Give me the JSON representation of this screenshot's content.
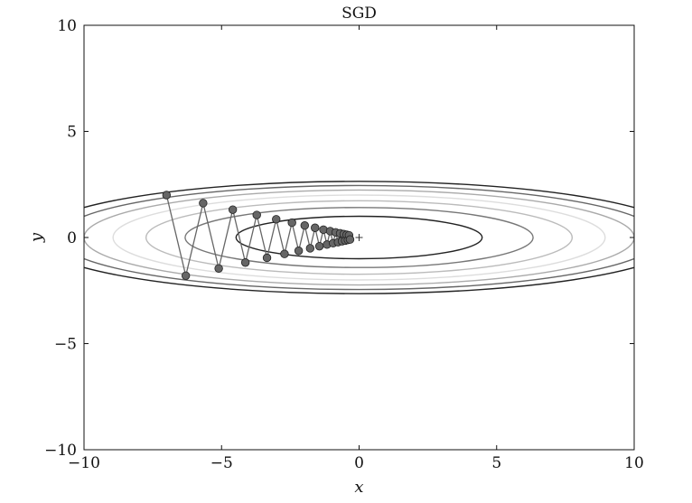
{
  "chart_data": {
    "type": "line",
    "title": "SGD",
    "xlabel": "x",
    "ylabel": "y",
    "xlim": [
      -10,
      10
    ],
    "ylim": [
      -10,
      10
    ],
    "xticks": [
      -10,
      -5,
      0,
      5,
      10
    ],
    "yticks": [
      -10,
      -5,
      0,
      5,
      10
    ],
    "xtick_labels": [
      "−10",
      "−5",
      "0",
      "5",
      "10"
    ],
    "ytick_labels": [
      "−10",
      "−5",
      "0",
      "5",
      "10"
    ],
    "grid": false,
    "function": "f(x, y) = x^2/20 + y^2",
    "contour_levels": [
      {
        "level": 1,
        "color": "#222222"
      },
      {
        "level": 2,
        "color": "#777777"
      },
      {
        "level": 3,
        "color": "#bbbbbb"
      },
      {
        "level": 4,
        "color": "#dddddd"
      },
      {
        "level": 5,
        "color": "#aaaaaa"
      },
      {
        "level": 6,
        "color": "#666666"
      },
      {
        "level": 7,
        "color": "#222222"
      }
    ],
    "minimum_marker": {
      "x": 0,
      "y": 0,
      "symbol": "+"
    },
    "series": [
      {
        "marker_color": "#666666",
        "line_color": "#666666",
        "x": [
          -7.0,
          -6.3,
          -5.67,
          -5.103,
          -4.5927,
          -4.13343,
          -3.720087,
          -3.3480783,
          -3.01327047,
          -2.711943423,
          -2.4407490807,
          -2.19667417263,
          -1.977006755367,
          -1.7793060798303,
          -1.60137547184727,
          -1.441237924662543,
          -1.2971141321962887,
          -1.1674027189766598,
          -1.0506624470789938,
          -0.9455962023710944,
          -0.851036582133985,
          -0.7659329239205865,
          -0.689339631528528,
          -0.6204056683756751,
          -0.5583651015381076,
          -0.5025285913842968,
          -0.4522757322458671,
          -0.4070481590212804,
          -0.3663433431191524,
          -0.3297090088072371
        ],
        "y": [
          2.0,
          -1.8,
          1.62,
          -1.458,
          1.3122,
          -1.18098,
          1.062882,
          -0.9565938,
          0.86093442,
          -0.774840978,
          0.6973568802,
          -0.62762119218,
          0.564859072962,
          -0.5083731656658,
          0.45753584909922,
          -0.411782264189298,
          0.3706040377703682,
          -0.3335436339933314,
          0.3001892705939982,
          -0.2701703435345984,
          0.2431533091811386,
          -0.2188379782630247,
          0.1969541804367222,
          -0.17725876239305,
          0.159532886153745,
          -0.1435795975383705,
          0.1292216377845335,
          -0.1162994740060801,
          0.1046695266054721,
          -0.0942025739449249
        ]
      }
    ]
  }
}
